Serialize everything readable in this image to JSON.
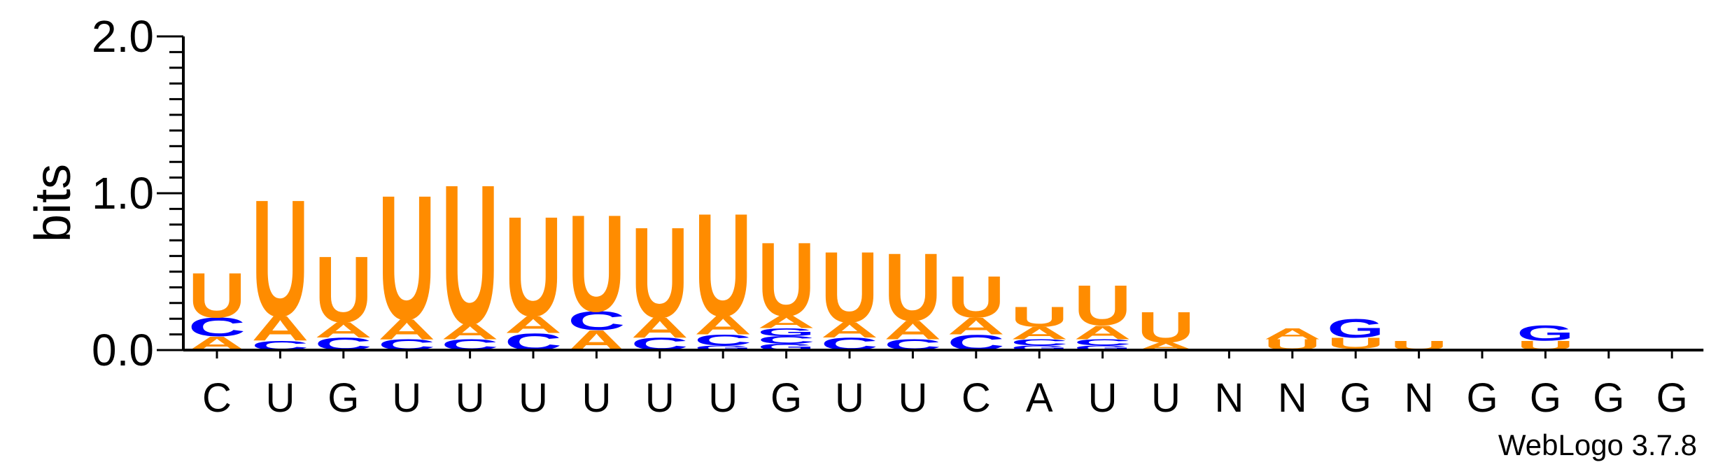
{
  "chart_data": {
    "type": "sequence-logo",
    "ylabel": "bits",
    "ylim": [
      0,
      2.0
    ],
    "yticks": [
      "0.0",
      "1.0",
      "2.0"
    ],
    "credit": "WebLogo 3.7.8",
    "colors": {
      "A": "#ff8c00",
      "U": "#ff8c00",
      "C": "#0000ff",
      "G": "#0000ff"
    },
    "positions": [
      {
        "label": "C",
        "stack": [
          {
            "letter": "A",
            "height": 0.09
          },
          {
            "letter": "C",
            "height": 0.12
          },
          {
            "letter": "U",
            "height": 0.29
          }
        ]
      },
      {
        "label": "U",
        "stack": [
          {
            "letter": "C",
            "height": 0.06
          },
          {
            "letter": "A",
            "height": 0.16
          },
          {
            "letter": "U",
            "height": 0.76
          }
        ]
      },
      {
        "label": "G",
        "stack": [
          {
            "letter": "C",
            "height": 0.08
          },
          {
            "letter": "A",
            "height": 0.1
          },
          {
            "letter": "U",
            "height": 0.43
          }
        ]
      },
      {
        "label": "U",
        "stack": [
          {
            "letter": "C",
            "height": 0.07
          },
          {
            "letter": "A",
            "height": 0.13
          },
          {
            "letter": "U",
            "height": 0.81
          }
        ]
      },
      {
        "label": "U",
        "stack": [
          {
            "letter": "C",
            "height": 0.07
          },
          {
            "letter": "A",
            "height": 0.1
          },
          {
            "letter": "U",
            "height": 0.91
          }
        ]
      },
      {
        "label": "U",
        "stack": [
          {
            "letter": "C",
            "height": 0.11
          },
          {
            "letter": "A",
            "height": 0.11
          },
          {
            "letter": "U",
            "height": 0.65
          }
        ]
      },
      {
        "label": "U",
        "stack": [
          {
            "letter": "A",
            "height": 0.13
          },
          {
            "letter": "C",
            "height": 0.12
          },
          {
            "letter": "U",
            "height": 0.63
          }
        ]
      },
      {
        "label": "U",
        "stack": [
          {
            "letter": "C",
            "height": 0.08
          },
          {
            "letter": "A",
            "height": 0.13
          },
          {
            "letter": "U",
            "height": 0.59
          }
        ]
      },
      {
        "label": "U",
        "stack": [
          {
            "letter": "G",
            "height": 0.03
          },
          {
            "letter": "C",
            "height": 0.07
          },
          {
            "letter": "A",
            "height": 0.12
          },
          {
            "letter": "U",
            "height": 0.67
          }
        ]
      },
      {
        "label": "G",
        "stack": [
          {
            "letter": "G",
            "height": 0.04
          },
          {
            "letter": "C",
            "height": 0.05
          },
          {
            "letter": "G",
            "height": 0.05
          },
          {
            "letter": "A",
            "height": 0.08
          },
          {
            "letter": "U",
            "height": 0.48
          }
        ]
      },
      {
        "label": "U",
        "stack": [
          {
            "letter": "C",
            "height": 0.08
          },
          {
            "letter": "A",
            "height": 0.1
          },
          {
            "letter": "U",
            "height": 0.46
          }
        ]
      },
      {
        "label": "U",
        "stack": [
          {
            "letter": "C",
            "height": 0.07
          },
          {
            "letter": "A",
            "height": 0.12
          },
          {
            "letter": "U",
            "height": 0.44
          }
        ]
      },
      {
        "label": "C",
        "stack": [
          {
            "letter": "C",
            "height": 0.1
          },
          {
            "letter": "A",
            "height": 0.11
          },
          {
            "letter": "U",
            "height": 0.27
          }
        ]
      },
      {
        "label": "A",
        "stack": [
          {
            "letter": "G",
            "height": 0.03
          },
          {
            "letter": "C",
            "height": 0.04
          },
          {
            "letter": "A",
            "height": 0.08
          },
          {
            "letter": "U",
            "height": 0.13
          }
        ]
      },
      {
        "label": "U",
        "stack": [
          {
            "letter": "G",
            "height": 0.03
          },
          {
            "letter": "C",
            "height": 0.04
          },
          {
            "letter": "A",
            "height": 0.09
          },
          {
            "letter": "U",
            "height": 0.26
          }
        ]
      },
      {
        "label": "U",
        "stack": [
          {
            "letter": "A",
            "height": 0.05
          },
          {
            "letter": "U",
            "height": 0.2
          }
        ]
      },
      {
        "label": "N",
        "stack": []
      },
      {
        "label": "N",
        "stack": [
          {
            "letter": "U",
            "height": 0.07
          },
          {
            "letter": "A",
            "height": 0.07
          }
        ]
      },
      {
        "label": "G",
        "stack": [
          {
            "letter": "A",
            "height": 0.01
          },
          {
            "letter": "U",
            "height": 0.07
          },
          {
            "letter": "G",
            "height": 0.12
          }
        ]
      },
      {
        "label": "N",
        "stack": [
          {
            "letter": "U",
            "height": 0.06
          }
        ]
      },
      {
        "label": "G",
        "stack": []
      },
      {
        "label": "G",
        "stack": [
          {
            "letter": "U",
            "height": 0.06
          },
          {
            "letter": "G",
            "height": 0.1
          }
        ]
      },
      {
        "label": "G",
        "stack": []
      },
      {
        "label": "G",
        "stack": []
      }
    ]
  }
}
